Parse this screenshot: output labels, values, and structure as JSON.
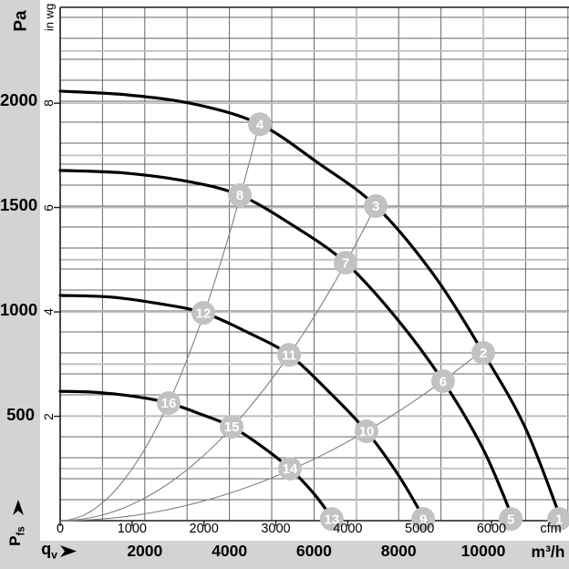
{
  "labels": {
    "pa_unit": "Pa",
    "inwg_unit": "in wg",
    "y_axis_base": "P",
    "y_axis_sub": "fs",
    "x_axis_base": "q",
    "x_axis_sub": "v",
    "cfm_unit": "cfm",
    "m3h_unit": "m³/h"
  },
  "colors": {
    "margin_bg": "#d3d3d3",
    "plot_bg": "#ffffff",
    "grid_dark": "#666666",
    "grid_light": "#bfbfbf",
    "axis": "#1a1a1a",
    "curve": "#000000",
    "system_line": "#7f7f7f",
    "badge_fill": "#c2c2c2",
    "badge_text": "#ffffff",
    "text": "#000000"
  },
  "chart_data": {
    "type": "line",
    "x_axis": {
      "label": "qv",
      "primary_unit": "m³/h",
      "primary_ticks": [
        2000,
        4000,
        6000,
        8000,
        10000
      ],
      "secondary_unit": "cfm",
      "secondary_ticks": [
        0,
        1000,
        2000,
        3000,
        4000,
        5000,
        6000
      ],
      "range_m3h": [
        0,
        12030
      ],
      "gridline_step_m3h": 1000,
      "light_gridlines_m3h": [
        7000,
        10000
      ]
    },
    "y_axis": {
      "label": "Pfs",
      "primary_unit": "Pa",
      "primary_ticks": [
        500,
        1000,
        1500,
        2000
      ],
      "secondary_unit": "in wg",
      "secondary_ticks": [
        2,
        4,
        6,
        8
      ],
      "range_pa": [
        0,
        2448
      ],
      "gridline_step_pa": 100,
      "light_gridline_step_inwg": 1
    },
    "fan_curves": [
      {
        "name": "fan-curve-1",
        "operating_point_ids": [
          4,
          3,
          2,
          1
        ],
        "points_q_p": [
          [
            0,
            2048
          ],
          [
            1600,
            2030
          ],
          [
            3200,
            1985
          ],
          [
            4720,
            1890
          ],
          [
            6100,
            1705
          ],
          [
            7460,
            1500
          ],
          [
            8800,
            1180
          ],
          [
            10000,
            800
          ],
          [
            11000,
            440
          ],
          [
            11850,
            0
          ]
        ]
      },
      {
        "name": "fan-curve-2",
        "operating_point_ids": [
          8,
          7,
          6,
          5
        ],
        "points_q_p": [
          [
            0,
            1670
          ],
          [
            1500,
            1658
          ],
          [
            3000,
            1618
          ],
          [
            4246,
            1552
          ],
          [
            5500,
            1408
          ],
          [
            6745,
            1230
          ],
          [
            7950,
            965
          ],
          [
            9050,
            665
          ],
          [
            10000,
            340
          ],
          [
            10720,
            0
          ]
        ]
      },
      {
        "name": "fan-curve-3",
        "operating_point_ids": [
          12,
          11,
          10,
          9
        ],
        "points_q_p": [
          [
            0,
            1074
          ],
          [
            1200,
            1066
          ],
          [
            2300,
            1036
          ],
          [
            3384,
            991
          ],
          [
            4430,
            898
          ],
          [
            5410,
            791
          ],
          [
            6350,
            615
          ],
          [
            7240,
            426
          ],
          [
            8000,
            215
          ],
          [
            8630,
            0
          ]
        ]
      },
      {
        "name": "fan-curve-4",
        "operating_point_ids": [
          16,
          15,
          14,
          13
        ],
        "points_q_p": [
          [
            0,
            617
          ],
          [
            900,
            611
          ],
          [
            1800,
            591
          ],
          [
            2565,
            561
          ],
          [
            3320,
            508
          ],
          [
            4052,
            448
          ],
          [
            4780,
            352
          ],
          [
            5430,
            248
          ],
          [
            6000,
            128
          ],
          [
            6470,
            0
          ]
        ]
      }
    ],
    "system_resistance_lines": [
      {
        "name": "system-line-A",
        "coefficient_pa_per_m3h_sq": 8.55e-05,
        "q_end_m3h": 4720,
        "through_operating_points": [
          16,
          12,
          8,
          4
        ]
      },
      {
        "name": "system-line-B",
        "coefficient_pa_per_m3h_sq": 2.7e-05,
        "q_end_m3h": 7460,
        "through_operating_points": [
          15,
          11,
          7,
          3
        ]
      },
      {
        "name": "system-line-C",
        "coefficient_pa_per_m3h_sq": 8.15e-06,
        "q_end_m3h": 10000,
        "through_operating_points": [
          14,
          10,
          6,
          2
        ]
      }
    ],
    "operating_points": [
      {
        "id": 1,
        "q_m3h": 11790,
        "p_pa": 8
      },
      {
        "id": 2,
        "q_m3h": 10000,
        "p_pa": 800
      },
      {
        "id": 3,
        "q_m3h": 7460,
        "p_pa": 1500
      },
      {
        "id": 4,
        "q_m3h": 4720,
        "p_pa": 1890
      },
      {
        "id": 5,
        "q_m3h": 10650,
        "p_pa": 8
      },
      {
        "id": 6,
        "q_m3h": 9050,
        "p_pa": 665
      },
      {
        "id": 7,
        "q_m3h": 6745,
        "p_pa": 1230
      },
      {
        "id": 8,
        "q_m3h": 4246,
        "p_pa": 1552
      },
      {
        "id": 9,
        "q_m3h": 8580,
        "p_pa": 8
      },
      {
        "id": 10,
        "q_m3h": 7240,
        "p_pa": 426
      },
      {
        "id": 11,
        "q_m3h": 5410,
        "p_pa": 791
      },
      {
        "id": 12,
        "q_m3h": 3384,
        "p_pa": 991
      },
      {
        "id": 13,
        "q_m3h": 6420,
        "p_pa": 8
      },
      {
        "id": 14,
        "q_m3h": 5430,
        "p_pa": 248
      },
      {
        "id": 15,
        "q_m3h": 4052,
        "p_pa": 448
      },
      {
        "id": 16,
        "q_m3h": 2565,
        "p_pa": 561
      }
    ]
  }
}
